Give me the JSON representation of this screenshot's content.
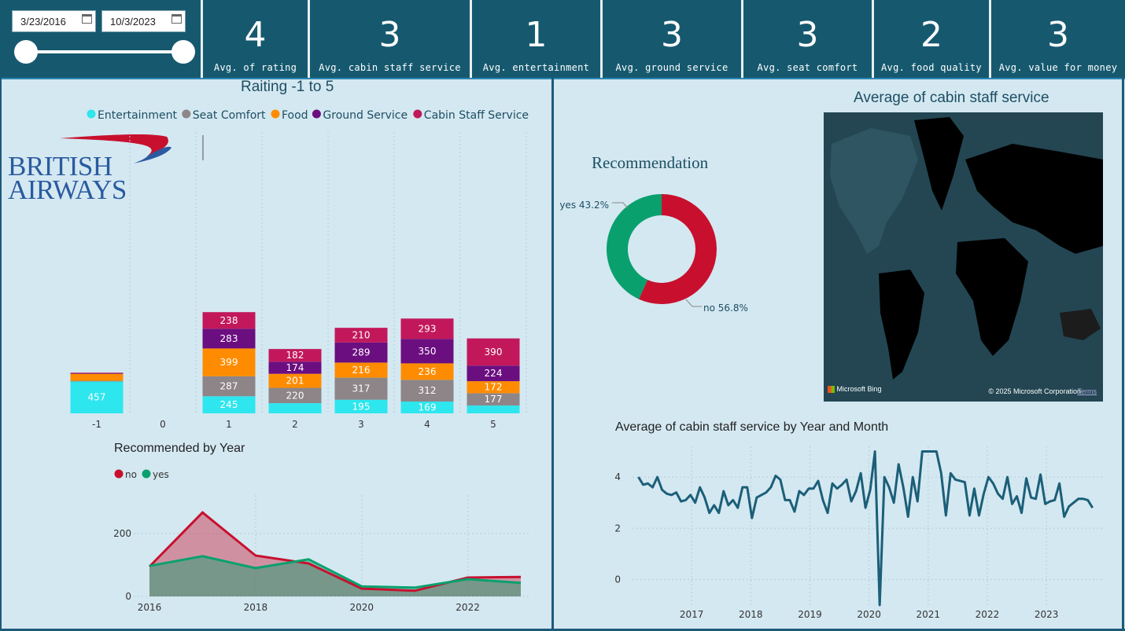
{
  "filters": {
    "start_date": "3/23/2016",
    "end_date": "10/3/2023"
  },
  "kpis": [
    {
      "value": "4",
      "label": "Avg. of rating"
    },
    {
      "value": "3",
      "label": "Avg. cabin staff service"
    },
    {
      "value": "1",
      "label": "Avg. entertainment"
    },
    {
      "value": "3",
      "label": "Avg. ground service"
    },
    {
      "value": "3",
      "label": "Avg.  seat comfort"
    },
    {
      "value": "2",
      "label": "Avg. food quality"
    },
    {
      "value": "3",
      "label": "Avg. value for money"
    }
  ],
  "logo": {
    "line1": "BRITISH",
    "line2": "AIRWAYS"
  },
  "colors": {
    "entertainment": "#2ee6ee",
    "seat_comfort": "#8d8588",
    "food": "#ff8c00",
    "ground_service": "#6b0e80",
    "cabin_staff": "#c2185b",
    "no": "#c8102e",
    "yes": "#0aa06e",
    "line": "#1b5f78"
  },
  "chart_data": [
    {
      "type": "bar",
      "title": "Raiting -1 to 5",
      "categories": [
        "-1",
        "0",
        "1",
        "2",
        "3",
        "4",
        "5"
      ],
      "series": [
        {
          "name": "Entertainment",
          "values": [
            457,
            0,
            245,
            146,
            195,
            169,
            112
          ]
        },
        {
          "name": "Seat Comfort",
          "values": [
            10,
            0,
            287,
            220,
            317,
            312,
            177
          ]
        },
        {
          "name": "Food",
          "values": [
            100,
            0,
            399,
            201,
            216,
            236,
            172
          ]
        },
        {
          "name": "Ground Service",
          "values": [
            8,
            0,
            283,
            174,
            289,
            350,
            224
          ]
        },
        {
          "name": "Cabin Staff Service",
          "values": [
            8,
            0,
            238,
            182,
            210,
            293,
            390
          ]
        }
      ],
      "legend": "top",
      "stacked": true
    },
    {
      "type": "pie",
      "title": "Recommendation",
      "labels": [
        "yes",
        "no"
      ],
      "values": [
        43.2,
        56.8
      ],
      "data_labels": [
        "yes 43.2%",
        "no 56.8%"
      ],
      "donut": true
    },
    {
      "type": "area",
      "title": "Recommended by Year",
      "x": [
        2016,
        2017,
        2018,
        2019,
        2020,
        2021,
        2022,
        2023
      ],
      "x_ticks": [
        "2016",
        "2018",
        "2020",
        "2022"
      ],
      "y_ticks": [
        "0",
        "200"
      ],
      "ylim": [
        0,
        300
      ],
      "series": [
        {
          "name": "no",
          "values": [
            95,
            267,
            130,
            105,
            25,
            18,
            60,
            62
          ]
        },
        {
          "name": "yes",
          "values": [
            97,
            128,
            90,
            118,
            32,
            28,
            55,
            43
          ]
        }
      ],
      "legend": "top-left"
    },
    {
      "type": "line",
      "title": "Average of cabin staff service by Year and Month",
      "x_ticks": [
        "2017",
        "2018",
        "2019",
        "2020",
        "2021",
        "2022",
        "2023"
      ],
      "y_ticks": [
        "0",
        "2",
        "4"
      ],
      "ylim": [
        -1,
        5.2
      ],
      "xlim": [
        2016.0,
        2023.85
      ],
      "series": [
        {
          "name": "Average of cabin staff service",
          "x": [
            2016.1,
            2016.18,
            2016.26,
            2016.34,
            2016.42,
            2016.5,
            2016.58,
            2016.66,
            2016.74,
            2016.82,
            2016.9,
            2016.98,
            2017.06,
            2017.14,
            2017.22,
            2017.3,
            2017.38,
            2017.46,
            2017.54,
            2017.62,
            2017.7,
            2017.78,
            2017.86,
            2017.94,
            2018.02,
            2018.1,
            2018.18,
            2018.26,
            2018.34,
            2018.42,
            2018.5,
            2018.58,
            2018.66,
            2018.74,
            2018.82,
            2018.9,
            2018.98,
            2019.06,
            2019.14,
            2019.22,
            2019.3,
            2019.38,
            2019.46,
            2019.54,
            2019.62,
            2019.7,
            2019.78,
            2019.86,
            2019.94,
            2020.02,
            2020.1,
            2020.18,
            2020.26,
            2020.34,
            2020.42,
            2020.5,
            2020.58,
            2020.66,
            2020.74,
            2020.82,
            2020.9,
            2020.98,
            2021.06,
            2021.14,
            2021.22,
            2021.3,
            2021.38,
            2021.46,
            2021.54,
            2021.62,
            2021.7,
            2021.78,
            2021.86,
            2021.94,
            2022.02,
            2022.1,
            2022.18,
            2022.26,
            2022.34,
            2022.42,
            2022.5,
            2022.58,
            2022.66,
            2022.74,
            2022.82,
            2022.9,
            2022.98,
            2023.06,
            2023.14,
            2023.22,
            2023.3,
            2023.38,
            2023.46,
            2023.54,
            2023.62,
            2023.7,
            2023.78
          ],
          "values": [
            4.0,
            3.7,
            3.75,
            3.6,
            4.0,
            3.5,
            3.35,
            3.3,
            3.4,
            3.05,
            3.1,
            3.3,
            3.0,
            3.6,
            3.2,
            2.6,
            2.9,
            2.6,
            3.45,
            2.9,
            3.1,
            2.8,
            3.6,
            3.6,
            2.4,
            3.2,
            3.3,
            3.4,
            3.6,
            4.05,
            3.9,
            3.1,
            3.1,
            2.65,
            3.45,
            3.3,
            3.55,
            3.55,
            3.85,
            3.1,
            2.6,
            3.75,
            3.55,
            3.7,
            3.9,
            3.05,
            3.45,
            4.15,
            2.8,
            3.5,
            5.0,
            -1.0,
            4.0,
            3.6,
            3.0,
            4.5,
            3.6,
            2.45,
            4.0,
            3.05,
            5.0,
            5.0,
            5.0,
            5.0,
            4.15,
            2.5,
            4.15,
            3.9,
            3.85,
            3.8,
            2.5,
            3.55,
            2.5,
            3.35,
            4.0,
            3.75,
            3.35,
            3.15,
            4.0,
            2.95,
            3.25,
            2.6,
            3.95,
            3.2,
            3.15,
            4.1,
            2.95,
            3.05,
            3.1,
            3.75,
            2.45,
            2.85,
            3.0,
            3.15,
            3.15,
            3.1,
            2.8
          ]
        }
      ]
    }
  ],
  "map": {
    "title": "Average of cabin staff service",
    "attribution": "Microsoft Bing",
    "copyright": "© 2025 Microsoft Corporation",
    "terms": "Terms"
  }
}
